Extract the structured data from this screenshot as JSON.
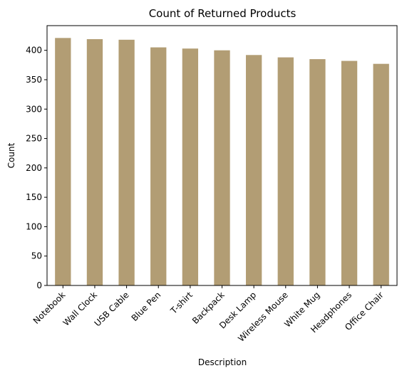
{
  "chart_data": {
    "type": "bar",
    "title": "Count of Returned Products",
    "xlabel": "Description",
    "ylabel": "Count",
    "categories": [
      "Notebook",
      "Wall Clock",
      "USB Cable",
      "Blue Pen",
      "T-shirt",
      "Backpack",
      "Desk Lamp",
      "Wireless Mouse",
      "White Mug",
      "Headphones",
      "Office Chair"
    ],
    "values": [
      421,
      419,
      418,
      405,
      403,
      400,
      392,
      388,
      385,
      382,
      377
    ],
    "ylim": [
      0,
      442
    ],
    "yticks": [
      0,
      50,
      100,
      150,
      200,
      250,
      300,
      350,
      400
    ],
    "grid": false,
    "legend": "none",
    "bar_color": "#b29d74"
  }
}
